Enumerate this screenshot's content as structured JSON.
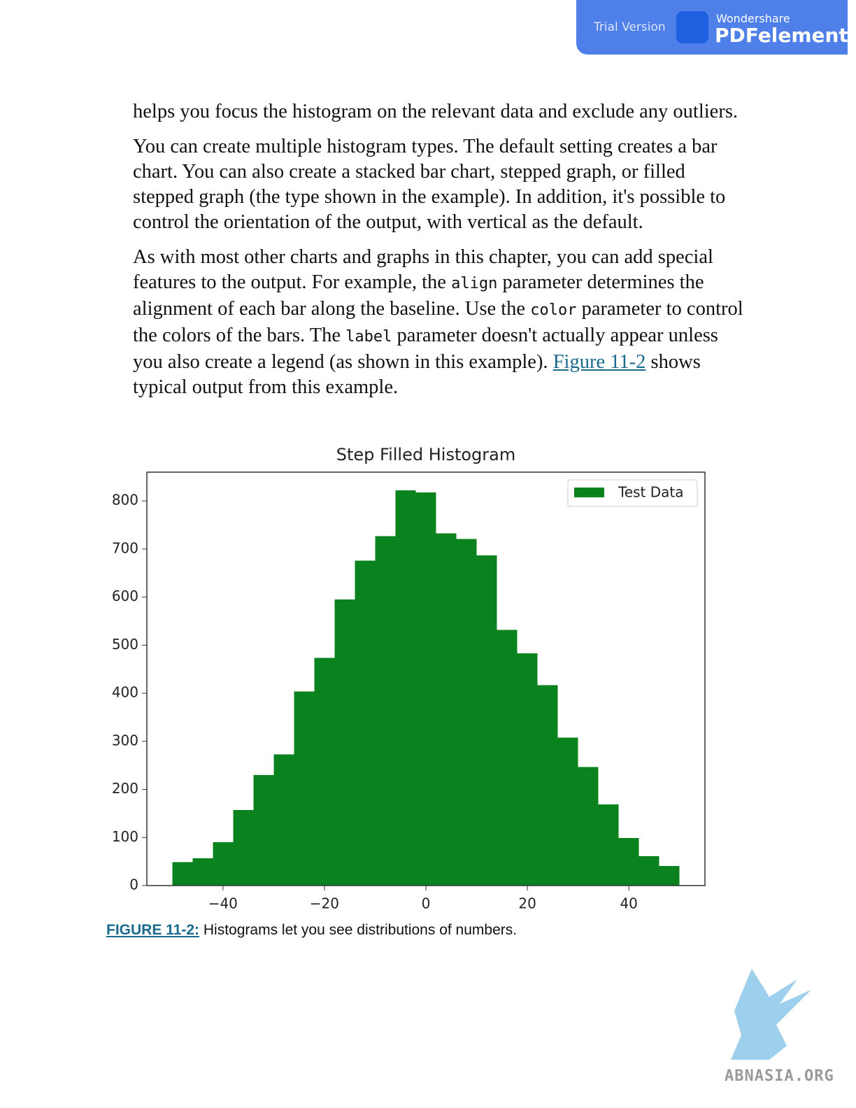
{
  "header": {
    "trial": "Trial Version",
    "brand": "Wondershare",
    "product": "PDFelement"
  },
  "body": {
    "paragraphs": [
      [
        "helps you focus the histogram on the relevant data and exclude any outliers."
      ],
      [
        "You can create multiple histogram types. The default setting creates a bar chart. You can also create a stacked bar chart, stepped graph, or filled stepped graph (the type shown in the example). In addition, it's possible to control the orientation of the output, with vertical as the default."
      ],
      [
        "As with most other charts and graphs in this chapter, you can add special features to the output. For example, the ",
        "align",
        " parameter determines the alignment of each bar along the baseline. Use the ",
        "color",
        " parameter to control the colors of the bars. The ",
        "label",
        " parameter doesn't actually appear unless you also create a legend (as shown in this example).",
        "Figure 11-2",
        " shows typical output from this example."
      ]
    ]
  },
  "chart_data": {
    "type": "histogram",
    "title": "Step Filled Histogram",
    "bins": [
      -50,
      -46,
      -42,
      -38,
      -34,
      -30,
      -26,
      -22,
      -18,
      -14,
      -10,
      -6,
      -2,
      2,
      6,
      10,
      14,
      18,
      22,
      26,
      30,
      34,
      38,
      42,
      46,
      50
    ],
    "series": [
      {
        "name": "Test Data",
        "color": "#0a821e",
        "values": [
          49,
          57,
          90,
          157,
          230,
          273,
          404,
          474,
          595,
          676,
          727,
          822,
          818,
          733,
          721,
          687,
          532,
          483,
          417,
          308,
          247,
          169,
          99,
          61,
          41
        ]
      }
    ],
    "xlim": [
      -55,
      55
    ],
    "xticks": [
      {
        "value": -40,
        "label": "−40"
      },
      {
        "value": -20,
        "label": "−20"
      },
      0,
      20,
      40
    ],
    "ylim": [
      0,
      860
    ],
    "yticks": [
      0,
      100,
      200,
      300,
      400,
      500,
      600,
      700,
      800
    ],
    "legend": "upper right",
    "grid": false
  },
  "caption": {
    "label": "FIGURE 11-2:",
    "text": " Histograms let you see distributions of numbers."
  },
  "watermark": "ABNASIA.ORG"
}
